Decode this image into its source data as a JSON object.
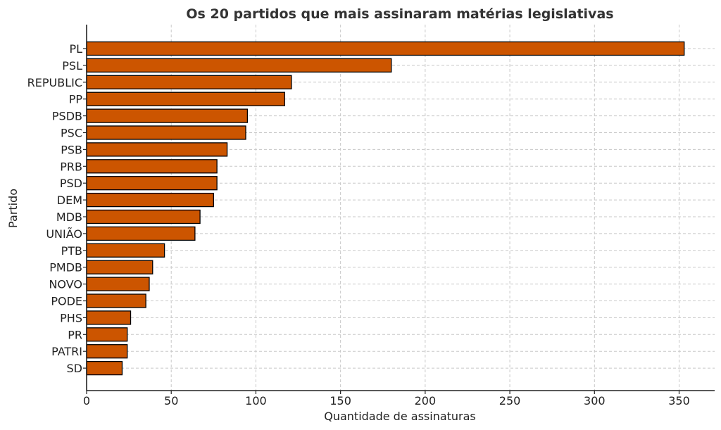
{
  "chart_data": {
    "type": "bar",
    "orientation": "horizontal",
    "title": "Os 20 partidos que mais assinaram matérias legislativas",
    "xlabel": "Quantidade de assinaturas",
    "ylabel": "Partido",
    "categories": [
      "PL",
      "PSL",
      "REPUBLIC",
      "PP",
      "PSDB",
      "PSC",
      "PSB",
      "PRB",
      "PSD",
      "DEM",
      "MDB",
      "UNIÃO",
      "PTB",
      "PMDB",
      "NOVO",
      "PODE",
      "PHS",
      "PR",
      "PATRI",
      "SD"
    ],
    "values": [
      353,
      180,
      121,
      117,
      95,
      94,
      83,
      77,
      77,
      75,
      67,
      64,
      46,
      39,
      37,
      35,
      26,
      24,
      24,
      21
    ],
    "xlim": [
      0,
      371
    ],
    "xticks": [
      0,
      50,
      100,
      150,
      200,
      250,
      300,
      350
    ],
    "grid": true,
    "bar_color": "#cc5500",
    "bar_edge_color": "#000000"
  }
}
